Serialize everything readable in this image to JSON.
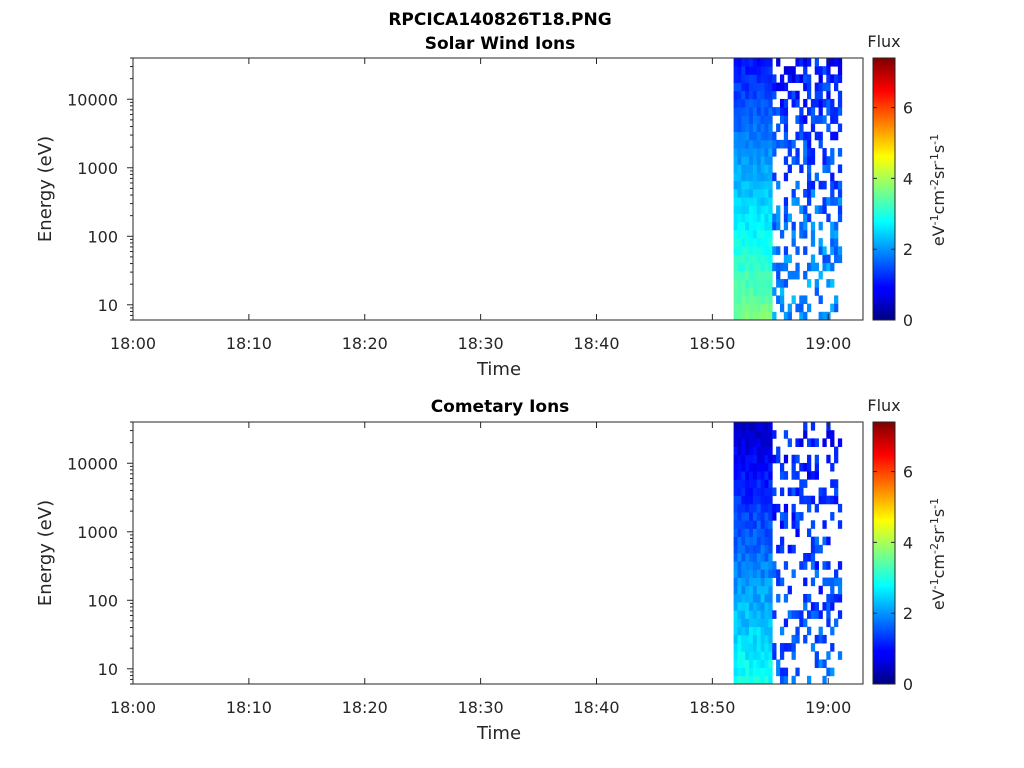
{
  "figure": {
    "title": "RPCICA140826T18.PNG"
  },
  "colorbar": {
    "title": "Flux",
    "unit_label": "eV-1cm-2sr-1s-1",
    "min": 0,
    "max": 7.4,
    "ticks": [
      "0",
      "2",
      "4",
      "6"
    ],
    "colormap": "jet"
  },
  "chart_data": [
    {
      "type": "heatmap",
      "title": "Solar Wind Ions",
      "xlabel": "Time",
      "ylabel": "Energy (eV)",
      "y_scale": "log",
      "ylim": [
        6,
        40000
      ],
      "xlim": [
        "18:00",
        "19:03"
      ],
      "x_ticks": [
        "18:00",
        "18:10",
        "18:20",
        "18:30",
        "18:40",
        "18:50",
        "19:00"
      ],
      "y_ticks": [
        "10",
        "100",
        "1000",
        "10000"
      ],
      "data_time_range": [
        "18:51:50",
        "19:01:10"
      ],
      "flux_range": [
        0,
        7.4
      ],
      "notes": "Dense flux 1-3 in first ~3 min (highest ~3.5-4 at lowest energies), sparse patchy data afterwards"
    },
    {
      "type": "heatmap",
      "title": "Cometary Ions",
      "xlabel": "Time",
      "ylabel": "Energy (eV)",
      "y_scale": "log",
      "ylim": [
        6,
        40000
      ],
      "xlim": [
        "18:00",
        "19:03"
      ],
      "x_ticks": [
        "18:00",
        "18:10",
        "18:20",
        "18:30",
        "18:40",
        "18:50",
        "19:00"
      ],
      "y_ticks": [
        "10",
        "100",
        "1000",
        "10000"
      ],
      "data_time_range": [
        "18:51:50",
        "19:01:10"
      ],
      "flux_range": [
        0,
        7.4
      ],
      "notes": "Dense flux ~0.5-2 in first ~3 min, sparse low-flux speckle afterwards"
    }
  ]
}
